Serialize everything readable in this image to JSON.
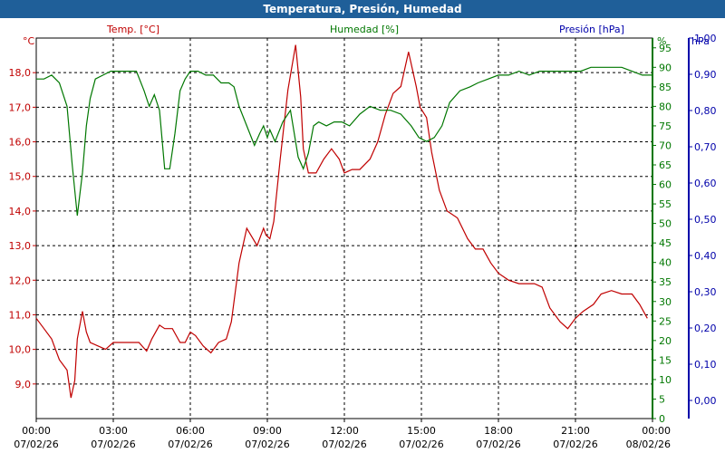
{
  "window": {
    "title": "Temperatura, Presión, Humedad"
  },
  "colors": {
    "temp": "#c00000",
    "hum": "#007700",
    "pres": "#0000aa",
    "axis": "#000000",
    "grid": "#000000"
  },
  "chart_data": {
    "type": "line",
    "title": "Temperatura, Presión, Humedad",
    "grid": true,
    "x_ticks": [
      {
        "time": "00:00",
        "date": "07/02/26"
      },
      {
        "time": "03:00",
        "date": "07/02/26"
      },
      {
        "time": "06:00",
        "date": "07/02/26"
      },
      {
        "time": "09:00",
        "date": "07/02/26"
      },
      {
        "time": "12:00",
        "date": "07/02/26"
      },
      {
        "time": "15:00",
        "date": "07/02/26"
      },
      {
        "time": "18:00",
        "date": "07/02/26"
      },
      {
        "time": "21:00",
        "date": "07/02/26"
      },
      {
        "time": "00:00",
        "date": "08/02/26"
      }
    ],
    "xlim_hours": [
      0,
      24
    ],
    "axes": {
      "temp": {
        "label": "Temp. [°C]",
        "unit": "°C",
        "ylim": [
          8.0,
          19.0
        ],
        "ticks": [
          "9,0",
          "10,0",
          "11,0",
          "12,0",
          "13,0",
          "14,0",
          "15,0",
          "16,0",
          "17,0",
          "18,0"
        ],
        "tick_values": [
          9,
          10,
          11,
          12,
          13,
          14,
          15,
          16,
          17,
          18
        ]
      },
      "hum": {
        "label": "Humedad [%]",
        "unit": "%",
        "ylim": [
          0,
          97.5
        ],
        "ticks": [
          "0",
          "5",
          "10",
          "15",
          "20",
          "25",
          "30",
          "35",
          "40",
          "45",
          "50",
          "55",
          "60",
          "65",
          "70",
          "75",
          "80",
          "85",
          "90",
          "95"
        ],
        "tick_values": [
          0,
          5,
          10,
          15,
          20,
          25,
          30,
          35,
          40,
          45,
          50,
          55,
          60,
          65,
          70,
          75,
          80,
          85,
          90,
          95
        ]
      },
      "pres": {
        "label": "Presión [hPa]",
        "unit": "hPa",
        "ylim": [
          -0.05,
          1.0
        ],
        "ticks": [
          "0,00",
          "0,10",
          "0,20",
          "0,30",
          "0,40",
          "0,50",
          "0,60",
          "0,70",
          "0,80",
          "0,90",
          "1,00"
        ],
        "tick_values": [
          0,
          0.1,
          0.2,
          0.3,
          0.4,
          0.5,
          0.6,
          0.7,
          0.8,
          0.9,
          1.0
        ]
      }
    },
    "series": [
      {
        "name": "Temp. [°C]",
        "axis": "temp",
        "x": [
          0,
          0.3,
          0.6,
          0.9,
          1.2,
          1.35,
          1.5,
          1.6,
          1.8,
          1.95,
          2.1,
          2.4,
          2.7,
          3.0,
          3.3,
          3.6,
          4.0,
          4.3,
          4.5,
          4.8,
          5.0,
          5.3,
          5.6,
          5.8,
          6.0,
          6.2,
          6.5,
          6.8,
          7.1,
          7.4,
          7.6,
          7.9,
          8.2,
          8.6,
          8.85,
          8.95,
          9.1,
          9.25,
          9.5,
          9.8,
          10.1,
          10.3,
          10.4,
          10.6,
          10.9,
          11.2,
          11.5,
          11.8,
          12.0,
          12.3,
          12.6,
          13.0,
          13.3,
          13.6,
          13.9,
          14.2,
          14.5,
          14.8,
          14.95,
          15.2,
          15.4,
          15.7,
          16.0,
          16.4,
          16.8,
          17.1,
          17.4,
          17.7,
          18.0,
          18.4,
          18.8,
          19.1,
          19.4,
          19.7,
          20.0,
          20.4,
          20.7,
          21.0,
          21.3,
          21.7,
          22.0,
          22.4,
          22.8,
          23.2,
          23.5,
          23.8
        ],
        "values": [
          10.9,
          10.6,
          10.3,
          9.7,
          9.4,
          8.6,
          9.1,
          10.3,
          11.1,
          10.5,
          10.2,
          10.1,
          10.0,
          10.2,
          10.2,
          10.2,
          10.2,
          9.95,
          10.3,
          10.7,
          10.6,
          10.6,
          10.2,
          10.2,
          10.5,
          10.4,
          10.1,
          9.9,
          10.2,
          10.3,
          10.8,
          12.5,
          13.5,
          13.0,
          13.5,
          13.3,
          13.2,
          13.7,
          15.5,
          17.5,
          18.8,
          17.3,
          15.8,
          15.1,
          15.1,
          15.5,
          15.8,
          15.5,
          15.1,
          15.2,
          15.2,
          15.5,
          16.0,
          16.8,
          17.4,
          17.6,
          18.6,
          17.6,
          17.0,
          16.7,
          15.7,
          14.6,
          14.0,
          13.8,
          13.2,
          12.9,
          12.9,
          12.5,
          12.2,
          12.0,
          11.9,
          11.9,
          11.9,
          11.8,
          11.2,
          10.8,
          10.6,
          10.9,
          11.1,
          11.3,
          11.6,
          11.7,
          11.6,
          11.6,
          11.3,
          10.9
        ]
      },
      {
        "name": "Humedad [%]",
        "axis": "hum",
        "x": [
          0,
          0.3,
          0.6,
          0.9,
          1.2,
          1.4,
          1.6,
          1.8,
          1.95,
          2.1,
          2.3,
          2.6,
          2.9,
          3.2,
          3.5,
          3.9,
          4.2,
          4.4,
          4.6,
          4.8,
          5.0,
          5.2,
          5.4,
          5.6,
          5.8,
          6.0,
          6.3,
          6.6,
          6.9,
          7.2,
          7.5,
          7.7,
          7.9,
          8.2,
          8.5,
          8.7,
          8.85,
          9.0,
          9.1,
          9.3,
          9.6,
          9.9,
          10.2,
          10.4,
          10.6,
          10.8,
          11.0,
          11.3,
          11.6,
          11.9,
          12.2,
          12.6,
          13.0,
          13.4,
          13.8,
          14.2,
          14.6,
          14.9,
          15.2,
          15.5,
          15.8,
          16.1,
          16.5,
          16.9,
          17.2,
          17.6,
          18.0,
          18.4,
          18.8,
          19.2,
          19.6,
          20.0,
          20.4,
          20.8,
          21.2,
          21.6,
          22.0,
          22.4,
          22.8,
          23.2,
          23.6,
          24.0
        ],
        "values": [
          87,
          87,
          88,
          86,
          80,
          65,
          52,
          63,
          75,
          82,
          87,
          88,
          89,
          89,
          89,
          89,
          84,
          80,
          83,
          79,
          64,
          64,
          73,
          84,
          87,
          89,
          89,
          88,
          88,
          86,
          86,
          85,
          80,
          75,
          70,
          73,
          75,
          72,
          74,
          71,
          76,
          79,
          67,
          64,
          68,
          75,
          76,
          75,
          76,
          76,
          75,
          78,
          80,
          79,
          79,
          78,
          75,
          72,
          71,
          72,
          75,
          81,
          84,
          85,
          86,
          87,
          88,
          88,
          89,
          88,
          89,
          89,
          89,
          89,
          89,
          90,
          90,
          90,
          90,
          89,
          88,
          88
        ]
      },
      {
        "name": "Presión [hPa]",
        "axis": "pres",
        "x": [],
        "values": []
      }
    ]
  }
}
